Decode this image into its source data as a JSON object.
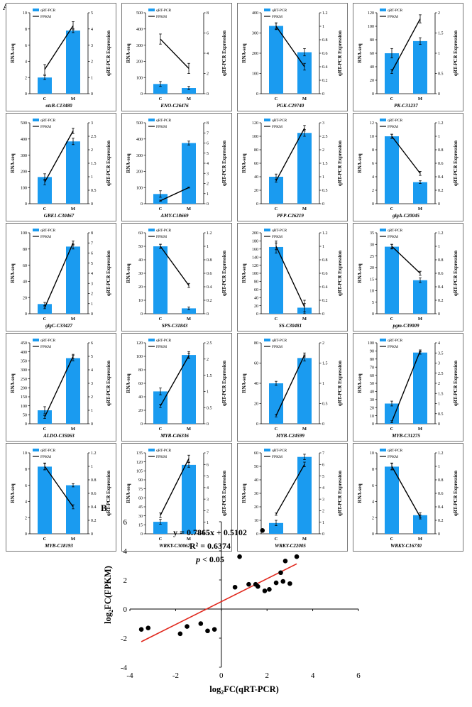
{
  "figure": {
    "panel_a_label": "A",
    "panel_b_label": "B"
  },
  "colors": {
    "bar": "#1a9bf0",
    "line": "#000000",
    "regression": "#e0261b",
    "point": "#000000",
    "panel_border": "#555555"
  },
  "legend": {
    "bar_label": "qRT-PCR",
    "line_label": "FPKM"
  },
  "axis_titles": {
    "left": "RNA-seq",
    "right": "qRT-PCR  Expression"
  },
  "chart_data": [
    {
      "type": "bar",
      "gene": "otsB-C13480",
      "categories": [
        "C",
        "M"
      ],
      "values": [
        2.0,
        7.8
      ],
      "errors": [
        0.25,
        0.25
      ],
      "ylim": [
        0,
        10
      ],
      "yticks": [
        0,
        2,
        4,
        6,
        8,
        10
      ],
      "fpkm_values": [
        1.5,
        4.2
      ],
      "fpkm_errors": [
        0.3,
        0.25
      ],
      "y2lim": [
        0,
        5
      ],
      "y2ticks": [
        0,
        1,
        2,
        3,
        4,
        5
      ]
    },
    {
      "type": "bar",
      "gene": "ENO-C26476",
      "categories": [
        "C",
        "M"
      ],
      "values": [
        60,
        35
      ],
      "errors": [
        15,
        10
      ],
      "ylim": [
        0,
        500
      ],
      "yticks": [
        0,
        100,
        200,
        300,
        400,
        500
      ],
      "fpkm_values": [
        5.4,
        2.5
      ],
      "fpkm_errors": [
        0.5,
        0.5
      ],
      "y2lim": [
        0,
        8
      ],
      "y2ticks": [
        0,
        2,
        4,
        6,
        8
      ]
    },
    {
      "type": "bar",
      "gene": "PGK-C29740",
      "categories": [
        "C",
        "M"
      ],
      "values": [
        335,
        205
      ],
      "errors": [
        15,
        18
      ],
      "ylim": [
        0,
        400
      ],
      "yticks": [
        0,
        100,
        200,
        300,
        400
      ],
      "fpkm_values": [
        1.0,
        0.4
      ],
      "fpkm_errors": [
        0.05,
        0.05
      ],
      "y2lim": [
        0,
        1.2
      ],
      "y2ticks": [
        0,
        0.2,
        0.4,
        0.6,
        0.8,
        1,
        1.2
      ]
    },
    {
      "type": "bar",
      "gene": "PK-C31237",
      "categories": [
        "C",
        "M"
      ],
      "values": [
        60,
        78
      ],
      "errors": [
        7,
        5
      ],
      "ylim": [
        0,
        120
      ],
      "yticks": [
        0,
        20,
        40,
        60,
        80,
        100,
        120
      ],
      "fpkm_values": [
        0.55,
        1.85
      ],
      "fpkm_errors": [
        0.05,
        0.1
      ],
      "y2lim": [
        0,
        2
      ],
      "y2ticks": [
        0,
        0.5,
        1,
        1.5,
        2
      ]
    },
    {
      "type": "bar",
      "gene": "GBE1-C30467",
      "categories": [
        "C",
        "M"
      ],
      "values": [
        165,
        385
      ],
      "errors": [
        20,
        20
      ],
      "ylim": [
        0,
        500
      ],
      "yticks": [
        0,
        100,
        200,
        300,
        400,
        500
      ],
      "fpkm_values": [
        0.8,
        2.7
      ],
      "fpkm_errors": [
        0.1,
        0.1
      ],
      "y2lim": [
        0,
        3
      ],
      "y2ticks": [
        0,
        0.5,
        1,
        1.5,
        2,
        2.5,
        3
      ]
    },
    {
      "type": "bar",
      "gene": "AMY-C18669",
      "categories": [
        "C",
        "M"
      ],
      "values": [
        60,
        375
      ],
      "errors": [
        20,
        12
      ],
      "ylim": [
        0,
        500
      ],
      "yticks": [
        0,
        100,
        200,
        300,
        400,
        500
      ],
      "fpkm_values": [
        0.3,
        1.6
      ],
      "fpkm_errors": [
        0.05,
        0.05
      ],
      "y2lim": [
        0,
        8
      ],
      "y2ticks": [
        0,
        1,
        2,
        3,
        4,
        5,
        6,
        7,
        8
      ]
    },
    {
      "type": "bar",
      "gene": "PFP-C26219",
      "categories": [
        "C",
        "M"
      ],
      "values": [
        40,
        105
      ],
      "errors": [
        4,
        5
      ],
      "ylim": [
        0,
        120
      ],
      "yticks": [
        0,
        20,
        40,
        60,
        80,
        100,
        120
      ],
      "fpkm_values": [
        0.85,
        2.8
      ],
      "fpkm_errors": [
        0.05,
        0.1
      ],
      "y2lim": [
        0,
        3
      ],
      "y2ticks": [
        0,
        0.5,
        1,
        1.5,
        2,
        2.5,
        3
      ]
    },
    {
      "type": "bar",
      "gene": "glgA-C20045",
      "categories": [
        "C",
        "M"
      ],
      "values": [
        10,
        3.2
      ],
      "errors": [
        0.3,
        0.2
      ],
      "ylim": [
        0,
        12
      ],
      "yticks": [
        0,
        2,
        4,
        6,
        8,
        10,
        12
      ],
      "fpkm_values": [
        1.0,
        0.45
      ],
      "fpkm_errors": [
        0.03,
        0.03
      ],
      "y2lim": [
        0,
        1.2
      ],
      "y2ticks": [
        0,
        0.2,
        0.4,
        0.6,
        0.8,
        1,
        1.2
      ]
    },
    {
      "type": "bar",
      "gene": "glgC-C33427",
      "categories": [
        "C",
        "M"
      ],
      "values": [
        12,
        83
      ],
      "errors": [
        2,
        3
      ],
      "ylim": [
        0,
        100
      ],
      "yticks": [
        0,
        20,
        40,
        60,
        80,
        100
      ],
      "fpkm_values": [
        0.6,
        7.0
      ],
      "fpkm_errors": [
        0.1,
        0.2
      ],
      "y2lim": [
        0,
        8
      ],
      "y2ticks": [
        0,
        1,
        2,
        3,
        4,
        5,
        6,
        7,
        8
      ]
    },
    {
      "type": "bar",
      "gene": "SPS-C31843",
      "categories": [
        "C",
        "M"
      ],
      "values": [
        50,
        4
      ],
      "errors": [
        1.5,
        1
      ],
      "ylim": [
        0,
        60
      ],
      "yticks": [
        0,
        10,
        20,
        30,
        40,
        50,
        60
      ],
      "fpkm_values": [
        1.0,
        0.42
      ],
      "fpkm_errors": [
        0.03,
        0.03
      ],
      "y2lim": [
        0,
        1.2
      ],
      "y2ticks": [
        0,
        0.2,
        0.4,
        0.6,
        0.8,
        1,
        1.2
      ]
    },
    {
      "type": "bar",
      "gene": "SS-C30481",
      "categories": [
        "C",
        "M"
      ],
      "values": [
        165,
        15
      ],
      "errors": [
        15,
        10
      ],
      "ylim": [
        0,
        200
      ],
      "yticks": [
        0,
        20,
        40,
        60,
        80,
        100,
        120,
        140,
        160,
        180,
        200
      ],
      "fpkm_values": [
        1.0,
        0.1
      ],
      "fpkm_errors": [
        0.05,
        0.1
      ],
      "y2lim": [
        0,
        1.2
      ],
      "y2ticks": [
        0,
        0.2,
        0.4,
        0.6,
        0.8,
        1,
        1.2
      ]
    },
    {
      "type": "bar",
      "gene": "pgm-C39009",
      "categories": [
        "C",
        "M"
      ],
      "values": [
        29,
        14.5
      ],
      "errors": [
        1,
        1
      ],
      "ylim": [
        0,
        35
      ],
      "yticks": [
        0,
        5,
        10,
        15,
        20,
        25,
        30,
        35
      ],
      "fpkm_values": [
        1.0,
        0.6
      ],
      "fpkm_errors": [
        0.03,
        0.03
      ],
      "y2lim": [
        0,
        1.2
      ],
      "y2ticks": [
        0,
        0.2,
        0.4,
        0.6,
        0.8,
        1,
        1.2
      ]
    },
    {
      "type": "bar",
      "gene": "ALDO-C35063",
      "categories": [
        "C",
        "M"
      ],
      "values": [
        75,
        365
      ],
      "errors": [
        20,
        15
      ],
      "ylim": [
        0,
        450
      ],
      "yticks": [
        0,
        50,
        100,
        150,
        200,
        250,
        300,
        350,
        400,
        450
      ],
      "fpkm_values": [
        0.5,
        5.0
      ],
      "fpkm_errors": [
        0.1,
        0.15
      ],
      "y2lim": [
        0,
        6
      ],
      "y2ticks": [
        0,
        1,
        2,
        3,
        4,
        5,
        6
      ]
    },
    {
      "type": "bar",
      "gene": "MYB-C46336",
      "categories": [
        "C",
        "M"
      ],
      "values": [
        48,
        102
      ],
      "errors": [
        5,
        5
      ],
      "ylim": [
        0,
        120
      ],
      "yticks": [
        0,
        20,
        40,
        60,
        80,
        100,
        120
      ],
      "fpkm_values": [
        0.55,
        2.1
      ],
      "fpkm_errors": [
        0.05,
        0.08
      ],
      "y2lim": [
        0,
        2.5
      ],
      "y2ticks": [
        0,
        0.5,
        1,
        1.5,
        2,
        2.5
      ]
    },
    {
      "type": "bar",
      "gene": "MYB-C24599",
      "categories": [
        "C",
        "M"
      ],
      "values": [
        40,
        65
      ],
      "errors": [
        2,
        3
      ],
      "ylim": [
        0,
        80
      ],
      "yticks": [
        0,
        20,
        40,
        60,
        80
      ],
      "fpkm_values": [
        0.2,
        1.7
      ],
      "fpkm_errors": [
        0.03,
        0.05
      ],
      "y2lim": [
        0,
        2
      ],
      "y2ticks": [
        0,
        0.5,
        1,
        1.5,
        2
      ]
    },
    {
      "type": "bar",
      "gene": "MYB-C31275",
      "categories": [
        "C",
        "M"
      ],
      "values": [
        25,
        88
      ],
      "errors": [
        3,
        2
      ],
      "ylim": [
        0,
        100
      ],
      "yticks": [
        0,
        10,
        20,
        30,
        40,
        50,
        60,
        70,
        80,
        90,
        100
      ],
      "fpkm_values": [
        0.1,
        3.6
      ],
      "fpkm_errors": [
        0.05,
        0.05
      ],
      "y2lim": [
        0,
        4
      ],
      "y2ticks": [
        0,
        0.5,
        1,
        1.5,
        2,
        2.5,
        3,
        3.5,
        4
      ]
    },
    {
      "type": "bar",
      "gene": "MYB-C18193",
      "categories": [
        "C",
        "M"
      ],
      "values": [
        8.3,
        6.0
      ],
      "errors": [
        0.4,
        0.2
      ],
      "ylim": [
        0,
        10
      ],
      "yticks": [
        0,
        2,
        4,
        6,
        8,
        10
      ],
      "fpkm_values": [
        1.0,
        0.4
      ],
      "fpkm_errors": [
        0.05,
        0.03
      ],
      "y2lim": [
        0,
        1.2
      ],
      "y2ticks": [
        0,
        0.2,
        0.4,
        0.6,
        0.8,
        1,
        1.2
      ]
    },
    {
      "type": "bar",
      "gene": "WRKY-C30062",
      "categories": [
        "C",
        "M"
      ],
      "values": [
        20,
        115
      ],
      "errors": [
        4,
        4
      ],
      "ylim": [
        0,
        135
      ],
      "yticks": [
        0,
        15,
        30,
        45,
        60,
        75,
        90,
        105,
        120,
        135
      ],
      "fpkm_values": [
        1.6,
        6.5
      ],
      "fpkm_errors": [
        0.2,
        0.3
      ],
      "y2lim": [
        0,
        7
      ],
      "y2ticks": [
        0,
        1,
        2,
        3,
        4,
        5,
        6,
        7
      ]
    },
    {
      "type": "bar",
      "gene": "WRKY-C22005",
      "categories": [
        "C",
        "M"
      ],
      "values": [
        8,
        57
      ],
      "errors": [
        2,
        2
      ],
      "ylim": [
        0,
        60
      ],
      "yticks": [
        0,
        10,
        20,
        30,
        40,
        50,
        60
      ],
      "fpkm_values": [
        1.7,
        6.0
      ],
      "fpkm_errors": [
        0.1,
        0.2
      ],
      "y2lim": [
        0,
        7
      ],
      "y2ticks": [
        0,
        1,
        2,
        3,
        4,
        5,
        6,
        7
      ]
    },
    {
      "type": "bar",
      "gene": "WRKY-C16730",
      "categories": [
        "C",
        "M"
      ],
      "values": [
        8.3,
        2.3
      ],
      "errors": [
        0.4,
        0.3
      ],
      "ylim": [
        0,
        10
      ],
      "yticks": [
        0,
        2,
        4,
        6,
        8,
        10
      ],
      "fpkm_values": [
        1.0,
        0.25
      ],
      "fpkm_errors": [
        0.05,
        0.03
      ],
      "y2lim": [
        0,
        1.2
      ],
      "y2ticks": [
        0,
        0.2,
        0.4,
        0.6,
        0.8,
        1,
        1.2
      ]
    },
    {
      "type": "scatter",
      "title": "",
      "xlabel_main": "log",
      "xlabel_sub": "2",
      "xlabel_tail": "FC(qRT-PCR)",
      "ylabel_main": "log",
      "ylabel_sub": "2",
      "ylabel_tail": "FC(FPKM)",
      "xlim": [
        -4,
        6
      ],
      "ylim": [
        -4,
        6
      ],
      "xticks": [
        -4,
        -2,
        0,
        2,
        4,
        6
      ],
      "yticks": [
        -4,
        -2,
        0,
        2,
        4,
        6
      ],
      "points": [
        {
          "x": -3.5,
          "y": -1.4
        },
        {
          "x": -3.2,
          "y": -1.3
        },
        {
          "x": -1.8,
          "y": -1.7
        },
        {
          "x": -1.5,
          "y": -1.2
        },
        {
          "x": -0.9,
          "y": -1.0
        },
        {
          "x": -0.6,
          "y": -1.5
        },
        {
          "x": -0.3,
          "y": -1.4
        },
        {
          "x": 0.6,
          "y": 1.5
        },
        {
          "x": 0.8,
          "y": 3.6
        },
        {
          "x": 1.2,
          "y": 1.7
        },
        {
          "x": 1.5,
          "y": 1.7
        },
        {
          "x": 1.6,
          "y": 1.55
        },
        {
          "x": 1.9,
          "y": 1.25
        },
        {
          "x": 2.1,
          "y": 1.35
        },
        {
          "x": 1.8,
          "y": 5.4
        },
        {
          "x": 2.4,
          "y": 1.8
        },
        {
          "x": 2.6,
          "y": 2.5
        },
        {
          "x": 2.7,
          "y": 1.9
        },
        {
          "x": 2.8,
          "y": 3.3
        },
        {
          "x": 3.0,
          "y": 1.75
        },
        {
          "x": 3.3,
          "y": 3.6
        }
      ],
      "fit": {
        "slope": 0.7865,
        "intercept": 0.5102,
        "x_range": [
          -3.5,
          3.3
        ]
      },
      "equation": "y = 0.7865x + 0.5102",
      "r2_text": "R² = 0.6374",
      "p_label": "p",
      "p_rest": " < 0.05"
    }
  ]
}
